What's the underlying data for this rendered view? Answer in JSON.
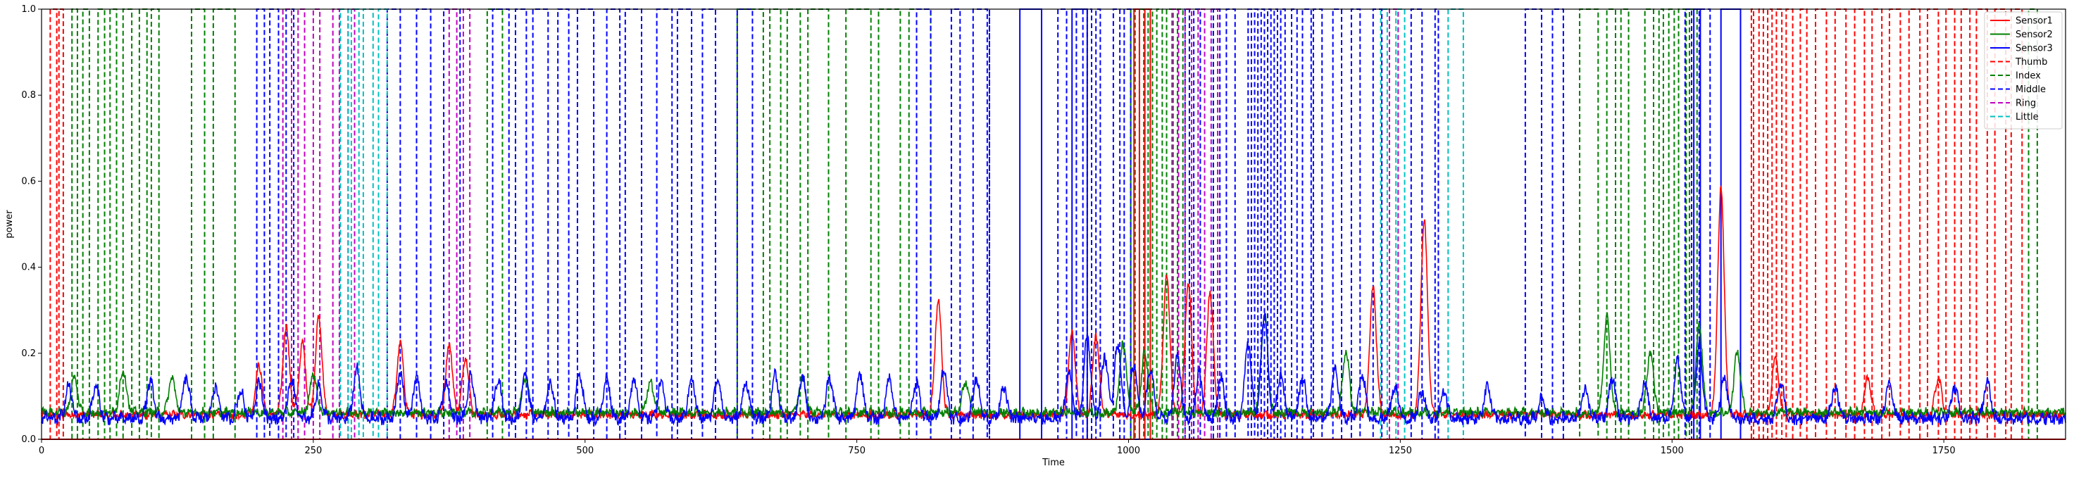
{
  "chart_data": {
    "type": "line",
    "title": "",
    "xlabel": "Time",
    "ylabel": "power",
    "xlim": [
      0,
      1862
    ],
    "ylim": [
      0,
      1.0
    ],
    "x_ticks": [
      0,
      250,
      500,
      750,
      1000,
      1250,
      1500,
      1750
    ],
    "y_ticks": [
      0.0,
      0.2,
      0.4,
      0.6,
      0.8,
      1.0
    ],
    "x_tick_labels": [
      "0",
      "250",
      "500",
      "750",
      "1000",
      "1250",
      "1500",
      "1750"
    ],
    "y_tick_labels": [
      "0.0",
      "0.2",
      "0.4",
      "0.6",
      "0.8",
      "1.0"
    ],
    "grid": false,
    "legend_position": "top-right",
    "series": [
      {
        "name": "Sensor1",
        "style": "solid",
        "color": "#ff0000",
        "baseline": 0.055,
        "noise": 0.008,
        "peaks": [
          [
            200,
            0.17
          ],
          [
            225,
            0.26
          ],
          [
            240,
            0.22
          ],
          [
            255,
            0.28
          ],
          [
            330,
            0.22
          ],
          [
            375,
            0.22
          ],
          [
            390,
            0.19
          ],
          [
            825,
            0.32
          ],
          [
            948,
            0.25
          ],
          [
            970,
            0.24
          ],
          [
            1035,
            0.38
          ],
          [
            1055,
            0.36
          ],
          [
            1075,
            0.34
          ],
          [
            1225,
            0.35
          ],
          [
            1272,
            0.51
          ],
          [
            1545,
            0.58
          ],
          [
            1595,
            0.19
          ],
          [
            1680,
            0.14
          ],
          [
            1745,
            0.14
          ]
        ]
      },
      {
        "name": "Sensor2",
        "style": "solid",
        "color": "#008000",
        "baseline": 0.06,
        "noise": 0.009,
        "peaks": [
          [
            30,
            0.14
          ],
          [
            75,
            0.16
          ],
          [
            120,
            0.14
          ],
          [
            250,
            0.15
          ],
          [
            445,
            0.14
          ],
          [
            560,
            0.13
          ],
          [
            700,
            0.14
          ],
          [
            850,
            0.13
          ],
          [
            995,
            0.22
          ],
          [
            1015,
            0.2
          ],
          [
            1125,
            0.29
          ],
          [
            1200,
            0.2
          ],
          [
            1440,
            0.28
          ],
          [
            1480,
            0.2
          ],
          [
            1525,
            0.26
          ],
          [
            1560,
            0.2
          ]
        ]
      },
      {
        "name": "Sensor3",
        "style": "solid",
        "color": "#0000ff",
        "baseline": 0.045,
        "noise": 0.012,
        "peaks": [
          [
            25,
            0.12
          ],
          [
            50,
            0.12
          ],
          [
            100,
            0.13
          ],
          [
            133,
            0.14
          ],
          [
            160,
            0.12
          ],
          [
            183,
            0.11
          ],
          [
            200,
            0.13
          ],
          [
            230,
            0.14
          ],
          [
            255,
            0.12
          ],
          [
            290,
            0.16
          ],
          [
            330,
            0.15
          ],
          [
            345,
            0.14
          ],
          [
            372,
            0.13
          ],
          [
            395,
            0.14
          ],
          [
            420,
            0.14
          ],
          [
            445,
            0.15
          ],
          [
            468,
            0.13
          ],
          [
            495,
            0.15
          ],
          [
            520,
            0.14
          ],
          [
            545,
            0.14
          ],
          [
            570,
            0.13
          ],
          [
            598,
            0.14
          ],
          [
            622,
            0.14
          ],
          [
            648,
            0.13
          ],
          [
            675,
            0.15
          ],
          [
            700,
            0.14
          ],
          [
            725,
            0.14
          ],
          [
            753,
            0.15
          ],
          [
            780,
            0.14
          ],
          [
            805,
            0.13
          ],
          [
            830,
            0.16
          ],
          [
            860,
            0.14
          ],
          [
            885,
            0.12
          ],
          [
            945,
            0.15
          ],
          [
            962,
            0.24
          ],
          [
            978,
            0.19
          ],
          [
            990,
            0.22
          ],
          [
            1005,
            0.17
          ],
          [
            1020,
            0.16
          ],
          [
            1045,
            0.19
          ],
          [
            1065,
            0.15
          ],
          [
            1085,
            0.14
          ],
          [
            1110,
            0.22
          ],
          [
            1125,
            0.29
          ],
          [
            1140,
            0.15
          ],
          [
            1160,
            0.14
          ],
          [
            1190,
            0.16
          ],
          [
            1215,
            0.15
          ],
          [
            1245,
            0.12
          ],
          [
            1270,
            0.11
          ],
          [
            1290,
            0.11
          ],
          [
            1330,
            0.12
          ],
          [
            1380,
            0.09
          ],
          [
            1420,
            0.11
          ],
          [
            1445,
            0.14
          ],
          [
            1475,
            0.13
          ],
          [
            1505,
            0.18
          ],
          [
            1525,
            0.21
          ],
          [
            1548,
            0.14
          ],
          [
            1600,
            0.13
          ],
          [
            1650,
            0.12
          ],
          [
            1700,
            0.13
          ],
          [
            1760,
            0.12
          ],
          [
            1790,
            0.13
          ]
        ]
      },
      {
        "name": "Thumb",
        "style": "dashed",
        "color": "#ff0000",
        "bands": [
          [
            8,
            14
          ],
          [
            16,
            20
          ],
          [
            1573,
            1575
          ],
          [
            1580,
            1584
          ],
          [
            1588,
            1592
          ],
          [
            1596,
            1601
          ],
          [
            1605,
            1611
          ],
          [
            1618,
            1624
          ],
          [
            1632,
            1642
          ],
          [
            1650,
            1660
          ],
          [
            1668,
            1677
          ],
          [
            1684,
            1693
          ],
          [
            1700,
            1710
          ],
          [
            1718,
            1728
          ],
          [
            1735,
            1745
          ],
          [
            1752,
            1760
          ],
          [
            1766,
            1774
          ],
          [
            1780,
            1790
          ],
          [
            1797,
            1807
          ],
          [
            1812,
            1822
          ]
        ]
      },
      {
        "name": "Index",
        "style": "dashed",
        "color": "#008000",
        "bands": [
          [
            28,
            33
          ],
          [
            38,
            44
          ],
          [
            52,
            58
          ],
          [
            63,
            69
          ],
          [
            75,
            83
          ],
          [
            90,
            97
          ],
          [
            101,
            108
          ],
          [
            138,
            150
          ],
          [
            158,
            178
          ],
          [
            410,
            424
          ],
          [
            640,
            664
          ],
          [
            670,
            680
          ],
          [
            686,
            698
          ],
          [
            705,
            724
          ],
          [
            740,
            763
          ],
          [
            770,
            790
          ],
          [
            798,
            818
          ],
          [
            1002,
            1006
          ],
          [
            1010,
            1014
          ],
          [
            1018,
            1022
          ],
          [
            1026,
            1031
          ],
          [
            1035,
            1041
          ],
          [
            1045,
            1050
          ],
          [
            1415,
            1432
          ],
          [
            1440,
            1448
          ],
          [
            1453,
            1460
          ],
          [
            1475,
            1483
          ],
          [
            1488,
            1492
          ],
          [
            1497,
            1502
          ],
          [
            1506,
            1513
          ],
          [
            1516,
            1523
          ],
          [
            1828,
            1836
          ]
        ]
      },
      {
        "name": "Middle",
        "style": "dashed",
        "color": "#0000ff",
        "bands": [
          [
            198,
            205
          ],
          [
            210,
            218
          ],
          [
            225,
            232
          ],
          [
            318,
            330
          ],
          [
            345,
            358
          ],
          [
            370,
            385
          ],
          [
            415,
            430
          ],
          [
            436,
            446
          ],
          [
            452,
            466
          ],
          [
            475,
            485
          ],
          [
            493,
            508
          ],
          [
            520,
            532
          ],
          [
            537,
            552
          ],
          [
            566,
            580
          ],
          [
            585,
            598
          ],
          [
            608,
            620
          ],
          [
            640,
            654
          ],
          [
            805,
            818
          ],
          [
            837,
            845
          ],
          [
            857,
            870
          ],
          [
            872,
            870
          ],
          [
            935,
            943
          ],
          [
            952,
            958
          ],
          [
            962,
            966
          ],
          [
            970,
            974
          ],
          [
            986,
            992
          ],
          [
            996,
            1002
          ],
          [
            1052,
            1056
          ],
          [
            1060,
            1066
          ],
          [
            1078,
            1084
          ],
          [
            1090,
            1098
          ],
          [
            1110,
            1113
          ],
          [
            1116,
            1119
          ],
          [
            1122,
            1125
          ],
          [
            1128,
            1131
          ],
          [
            1134,
            1137
          ],
          [
            1140,
            1144
          ],
          [
            1150,
            1155
          ],
          [
            1160,
            1168
          ],
          [
            1170,
            1178
          ],
          [
            1188,
            1196
          ],
          [
            1205,
            1213
          ],
          [
            1225,
            1233
          ],
          [
            1260,
            1270
          ],
          [
            1282,
            1285
          ],
          [
            1365,
            1380
          ],
          [
            1390,
            1400
          ],
          [
            1512,
            1518
          ],
          [
            1525,
            1535
          ]
        ]
      },
      {
        "name": "Ring",
        "style": "dashed",
        "color": "#c000c0",
        "bands": [
          [
            222,
            230
          ],
          [
            236,
            242
          ],
          [
            250,
            256
          ],
          [
            268,
            274
          ],
          [
            282,
            288
          ],
          [
            375,
            382
          ],
          [
            388,
            394
          ],
          [
            1040,
            1046
          ],
          [
            1052,
            1058
          ],
          [
            1064,
            1070
          ],
          [
            1076,
            1082
          ],
          [
            1240,
            1248
          ]
        ]
      },
      {
        "name": "Little",
        "style": "dashed",
        "color": "#00c0c0",
        "bands": [
          [
            275,
            282
          ],
          [
            285,
            292
          ],
          [
            296,
            305
          ],
          [
            310,
            318
          ],
          [
            1232,
            1238
          ],
          [
            1246,
            1254
          ],
          [
            1294,
            1308
          ]
        ]
      },
      {
        "name": "",
        "style": "solid-band",
        "color": "#0000ff",
        "bands": [
          [
            900,
            920
          ],
          [
            948,
            962
          ],
          [
            1520,
            1526
          ],
          [
            1545,
            1563
          ]
        ]
      },
      {
        "name": "",
        "style": "solid-band",
        "color": "#ff0000",
        "bands": [
          [
            1005,
            1010
          ],
          [
            1015,
            1020
          ]
        ]
      }
    ]
  }
}
